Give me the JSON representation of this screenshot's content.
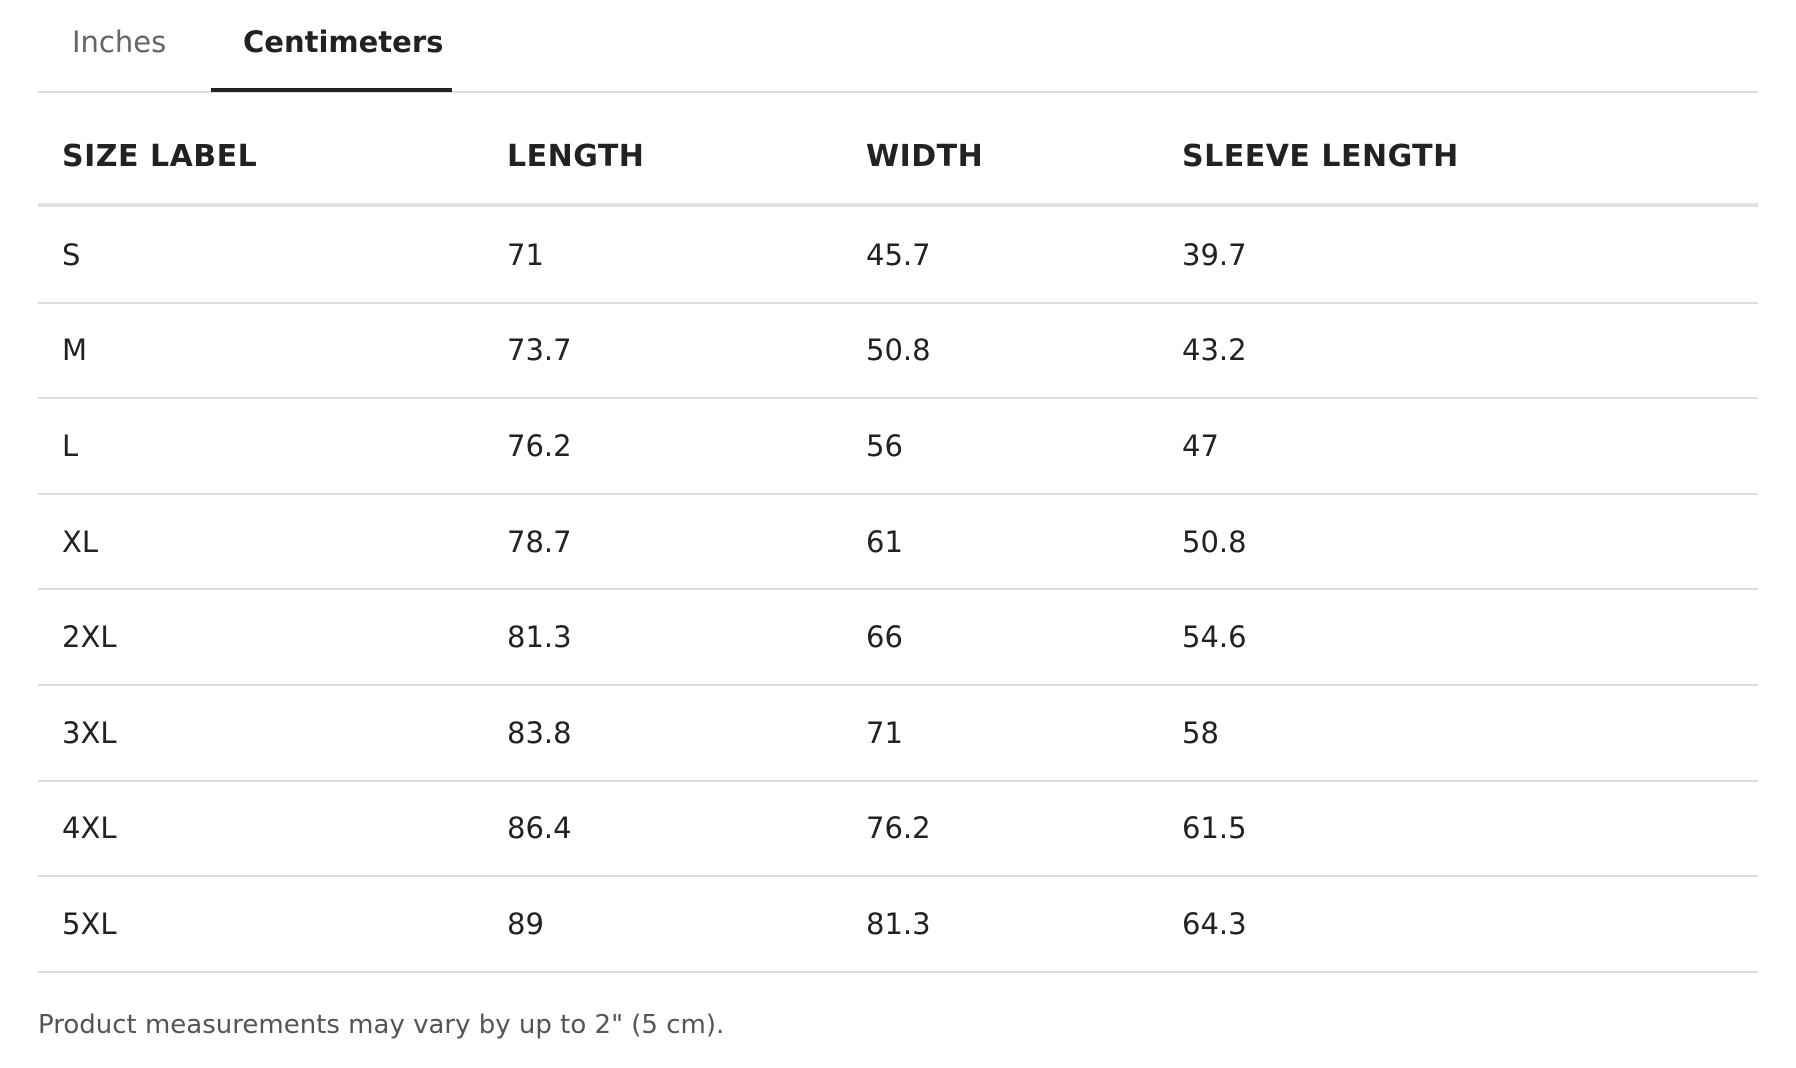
{
  "tabs": [
    "Inches",
    "Centimeters"
  ],
  "table": {
    "headers": [
      "SIZE LABEL",
      "LENGTH",
      "WIDTH",
      "SLEEVE LENGTH"
    ],
    "rows": [
      [
        "S",
        "71",
        "45.7",
        "39.7"
      ],
      [
        "M",
        "73.7",
        "50.8",
        "43.2"
      ],
      [
        "L",
        "76.2",
        "56",
        "47"
      ],
      [
        "XL",
        "78.7",
        "61",
        "50.8"
      ],
      [
        "2XL",
        "81.3",
        "66",
        "54.6"
      ],
      [
        "3XL",
        "83.8",
        "71",
        "58"
      ],
      [
        "4XL",
        "86.4",
        "76.2",
        "61.5"
      ],
      [
        "5XL",
        "89",
        "81.3",
        "64.3"
      ]
    ]
  },
  "footnote": "Product measurements may vary by up to 2\" (5 cm)."
}
